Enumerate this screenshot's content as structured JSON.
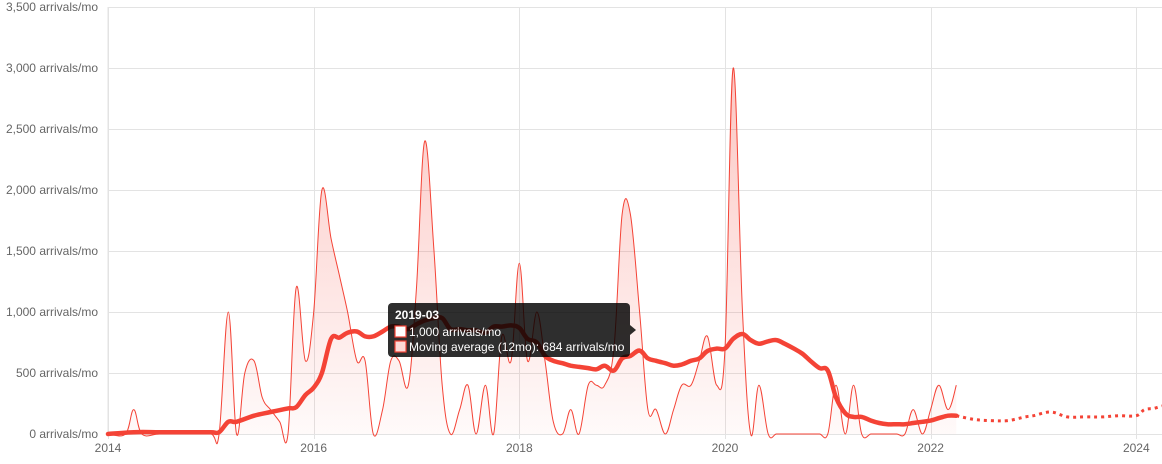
{
  "chart_data": {
    "type": "line",
    "title": "",
    "xlabel": "",
    "ylabel": "",
    "xlim": [
      2014.0,
      2024.25
    ],
    "ylim": [
      0,
      3500
    ],
    "x_ticks": [
      2014,
      2016,
      2018,
      2020,
      2022,
      2024
    ],
    "y_ticks": [
      0,
      500,
      1000,
      1500,
      2000,
      2500,
      3000,
      3500
    ],
    "y_tick_labels": [
      "0 arrivals/mo",
      "500 arrivals/mo",
      "1,000 arrivals/mo",
      "1,500 arrivals/mo",
      "2,000 arrivals/mo",
      "2,500 arrivals/mo",
      "3,000 arrivals/mo",
      "3,500 arrivals/mo"
    ],
    "grid": true,
    "legend": "none",
    "colors": {
      "series": "#f44336",
      "fill": "rgba(244,67,54,0.22)",
      "grid": "#e3e3e3",
      "tooltip_bg": "rgba(0,0,0,0.82)"
    },
    "series": [
      {
        "style": "thin-line-with-area",
        "points": [
          [
            2014.0,
            0
          ],
          [
            2014.17,
            0
          ],
          [
            2014.25,
            200
          ],
          [
            2014.33,
            0
          ],
          [
            2014.5,
            0
          ],
          [
            2014.75,
            0
          ],
          [
            2015.0,
            0
          ],
          [
            2015.08,
            0
          ],
          [
            2015.17,
            1000
          ],
          [
            2015.25,
            0
          ],
          [
            2015.33,
            500
          ],
          [
            2015.42,
            600
          ],
          [
            2015.5,
            300
          ],
          [
            2015.58,
            200
          ],
          [
            2015.67,
            100
          ],
          [
            2015.75,
            0
          ],
          [
            2015.83,
            1200
          ],
          [
            2015.92,
            600
          ],
          [
            2016.0,
            1000
          ],
          [
            2016.08,
            2000
          ],
          [
            2016.17,
            1600
          ],
          [
            2016.25,
            1300
          ],
          [
            2016.33,
            1000
          ],
          [
            2016.42,
            600
          ],
          [
            2016.5,
            600
          ],
          [
            2016.58,
            0
          ],
          [
            2016.67,
            200
          ],
          [
            2016.75,
            600
          ],
          [
            2016.83,
            600
          ],
          [
            2016.92,
            400
          ],
          [
            2017.0,
            1200
          ],
          [
            2017.08,
            2400
          ],
          [
            2017.17,
            1500
          ],
          [
            2017.25,
            400
          ],
          [
            2017.33,
            0
          ],
          [
            2017.42,
            200
          ],
          [
            2017.5,
            400
          ],
          [
            2017.58,
            0
          ],
          [
            2017.67,
            400
          ],
          [
            2017.75,
            0
          ],
          [
            2017.83,
            800
          ],
          [
            2017.92,
            600
          ],
          [
            2018.0,
            1400
          ],
          [
            2018.08,
            600
          ],
          [
            2018.17,
            1000
          ],
          [
            2018.25,
            600
          ],
          [
            2018.33,
            100
          ],
          [
            2018.42,
            0
          ],
          [
            2018.5,
            200
          ],
          [
            2018.58,
            0
          ],
          [
            2018.67,
            400
          ],
          [
            2018.75,
            400
          ],
          [
            2018.83,
            400
          ],
          [
            2018.92,
            700
          ],
          [
            2019.0,
            1800
          ],
          [
            2019.08,
            1800
          ],
          [
            2019.17,
            1000
          ],
          [
            2019.25,
            200
          ],
          [
            2019.33,
            200
          ],
          [
            2019.42,
            0
          ],
          [
            2019.5,
            200
          ],
          [
            2019.58,
            400
          ],
          [
            2019.67,
            400
          ],
          [
            2019.75,
            600
          ],
          [
            2019.83,
            800
          ],
          [
            2019.92,
            400
          ],
          [
            2020.0,
            700
          ],
          [
            2020.08,
            3000
          ],
          [
            2020.17,
            1000
          ],
          [
            2020.25,
            0
          ],
          [
            2020.33,
            400
          ],
          [
            2020.42,
            0
          ],
          [
            2020.5,
            0
          ],
          [
            2020.58,
            0
          ],
          [
            2020.67,
            0
          ],
          [
            2020.75,
            0
          ],
          [
            2020.83,
            0
          ],
          [
            2020.92,
            0
          ],
          [
            2021.0,
            0
          ],
          [
            2021.08,
            400
          ],
          [
            2021.17,
            0
          ],
          [
            2021.25,
            400
          ],
          [
            2021.33,
            0
          ],
          [
            2021.42,
            0
          ],
          [
            2021.5,
            0
          ],
          [
            2021.58,
            0
          ],
          [
            2021.67,
            0
          ],
          [
            2021.75,
            0
          ],
          [
            2021.83,
            200
          ],
          [
            2021.92,
            0
          ],
          [
            2022.0,
            200
          ],
          [
            2022.08,
            400
          ],
          [
            2022.17,
            200
          ],
          [
            2022.25,
            400
          ]
        ]
      },
      {
        "name": "Moving average (12mo)",
        "style": "thick-line",
        "points": [
          [
            2014.0,
            0
          ],
          [
            2014.25,
            15
          ],
          [
            2014.5,
            15
          ],
          [
            2014.75,
            15
          ],
          [
            2015.0,
            15
          ],
          [
            2015.08,
            15
          ],
          [
            2015.17,
            100
          ],
          [
            2015.25,
            100
          ],
          [
            2015.42,
            150
          ],
          [
            2015.58,
            180
          ],
          [
            2015.75,
            210
          ],
          [
            2015.83,
            220
          ],
          [
            2015.92,
            320
          ],
          [
            2016.0,
            380
          ],
          [
            2016.08,
            500
          ],
          [
            2016.17,
            780
          ],
          [
            2016.25,
            790
          ],
          [
            2016.33,
            830
          ],
          [
            2016.42,
            840
          ],
          [
            2016.5,
            800
          ],
          [
            2016.58,
            800
          ],
          [
            2016.67,
            840
          ],
          [
            2016.75,
            880
          ],
          [
            2016.83,
            880
          ],
          [
            2016.92,
            860
          ],
          [
            2017.0,
            900
          ],
          [
            2017.08,
            930
          ],
          [
            2017.17,
            950
          ],
          [
            2017.25,
            950
          ],
          [
            2017.33,
            860
          ],
          [
            2017.42,
            860
          ],
          [
            2017.5,
            850
          ],
          [
            2017.58,
            850
          ],
          [
            2017.67,
            830
          ],
          [
            2017.75,
            880
          ],
          [
            2017.83,
            880
          ],
          [
            2017.92,
            890
          ],
          [
            2018.0,
            870
          ],
          [
            2018.08,
            780
          ],
          [
            2018.17,
            750
          ],
          [
            2018.25,
            640
          ],
          [
            2018.33,
            600
          ],
          [
            2018.42,
            580
          ],
          [
            2018.5,
            560
          ],
          [
            2018.58,
            550
          ],
          [
            2018.67,
            540
          ],
          [
            2018.75,
            530
          ],
          [
            2018.83,
            560
          ],
          [
            2018.92,
            520
          ],
          [
            2019.0,
            620
          ],
          [
            2019.08,
            640
          ],
          [
            2019.17,
            684
          ],
          [
            2019.25,
            620
          ],
          [
            2019.33,
            600
          ],
          [
            2019.42,
            580
          ],
          [
            2019.5,
            560
          ],
          [
            2019.58,
            570
          ],
          [
            2019.67,
            600
          ],
          [
            2019.75,
            620
          ],
          [
            2019.83,
            680
          ],
          [
            2019.92,
            700
          ],
          [
            2020.0,
            700
          ],
          [
            2020.08,
            780
          ],
          [
            2020.17,
            820
          ],
          [
            2020.25,
            770
          ],
          [
            2020.33,
            740
          ],
          [
            2020.42,
            760
          ],
          [
            2020.5,
            770
          ],
          [
            2020.58,
            740
          ],
          [
            2020.67,
            700
          ],
          [
            2020.75,
            660
          ],
          [
            2020.83,
            600
          ],
          [
            2020.92,
            540
          ],
          [
            2021.0,
            520
          ],
          [
            2021.08,
            300
          ],
          [
            2021.17,
            170
          ],
          [
            2021.25,
            140
          ],
          [
            2021.33,
            140
          ],
          [
            2021.42,
            110
          ],
          [
            2021.5,
            90
          ],
          [
            2021.58,
            80
          ],
          [
            2021.67,
            80
          ],
          [
            2021.75,
            80
          ],
          [
            2021.83,
            90
          ],
          [
            2021.92,
            100
          ],
          [
            2022.0,
            110
          ],
          [
            2022.08,
            130
          ],
          [
            2022.17,
            150
          ],
          [
            2022.25,
            150
          ]
        ]
      },
      {
        "style": "dotted-projection",
        "points": [
          [
            2022.25,
            150
          ],
          [
            2022.42,
            120
          ],
          [
            2022.58,
            110
          ],
          [
            2022.75,
            110
          ],
          [
            2022.92,
            140
          ],
          [
            2023.0,
            150
          ],
          [
            2023.17,
            180
          ],
          [
            2023.33,
            140
          ],
          [
            2023.5,
            140
          ],
          [
            2023.67,
            140
          ],
          [
            2023.83,
            150
          ],
          [
            2024.0,
            150
          ],
          [
            2024.08,
            200
          ],
          [
            2024.17,
            210
          ],
          [
            2024.25,
            230
          ]
        ]
      }
    ],
    "tooltip": {
      "title": "2019-03",
      "lines": [
        "1,000 arrivals/mo",
        "Moving average (12mo): 684 arrivals/mo"
      ]
    }
  }
}
